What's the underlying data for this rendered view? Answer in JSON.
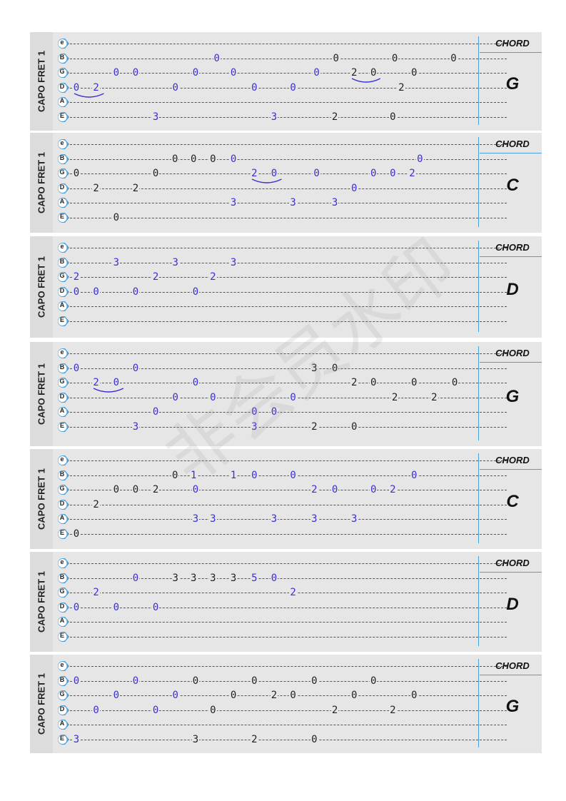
{
  "strings": [
    "e",
    "B",
    "G",
    "D",
    "A",
    "E"
  ],
  "sections": [
    {
      "capo": "CAPO FRET 1",
      "chord_header": "CHORD",
      "chord": "G",
      "notes": [
        [],
        [
          {
            "t": "0",
            "p": 0.37,
            "c": "blue"
          },
          {
            "t": "0",
            "p": 0.678,
            "c": "black"
          },
          {
            "t": "0",
            "p": 0.83,
            "c": "black"
          },
          {
            "t": "0",
            "p": 0.982,
            "c": "black"
          }
        ],
        [
          {
            "t": "0",
            "p": 0.11,
            "c": "blue"
          },
          {
            "t": "0",
            "p": 0.16,
            "c": "blue"
          },
          {
            "t": "0",
            "p": 0.315,
            "c": "blue"
          },
          {
            "t": "0",
            "p": 0.413,
            "c": "blue"
          },
          {
            "t": "0",
            "p": 0.628,
            "c": "blue"
          },
          {
            "t": "2",
            "p": 0.725,
            "c": "black"
          },
          {
            "t": "0",
            "p": 0.775,
            "c": "black"
          },
          {
            "t": "0",
            "p": 0.88,
            "c": "black"
          }
        ],
        [
          {
            "t": "0",
            "p": 0.007,
            "c": "blue"
          },
          {
            "t": "2",
            "p": 0.058,
            "c": "blue"
          },
          {
            "t": "0",
            "p": 0.263,
            "c": "blue"
          },
          {
            "t": "0",
            "p": 0.467,
            "c": "blue"
          },
          {
            "t": "0",
            "p": 0.567,
            "c": "blue"
          },
          {
            "t": "2",
            "p": 0.847,
            "c": "black"
          }
        ],
        [],
        [
          {
            "t": "3",
            "p": 0.212,
            "c": "blue"
          },
          {
            "t": "3",
            "p": 0.518,
            "c": "blue"
          },
          {
            "t": "2",
            "p": 0.675,
            "c": "black"
          },
          {
            "t": "0",
            "p": 0.825,
            "c": "black"
          }
        ]
      ],
      "slurs": [
        {
          "s": 3,
          "a": 0.007,
          "b": 0.065
        },
        {
          "s": 2,
          "a": 0.725,
          "b": 0.78
        }
      ]
    },
    {
      "capo": "CAPO FRET 1",
      "chord_header": "CHORD",
      "chord": "C",
      "notes": [
        [],
        [
          {
            "t": "0",
            "p": 0.262,
            "c": "black"
          },
          {
            "t": "0",
            "p": 0.31,
            "c": "black"
          },
          {
            "t": "0",
            "p": 0.36,
            "c": "black"
          },
          {
            "t": "0",
            "p": 0.413,
            "c": "blue"
          },
          {
            "t": "0",
            "p": 0.895,
            "c": "blue"
          }
        ],
        [
          {
            "t": "0",
            "p": 0.007,
            "c": "black"
          },
          {
            "t": "0",
            "p": 0.212,
            "c": "black"
          },
          {
            "t": "2",
            "p": 0.467,
            "c": "blue"
          },
          {
            "t": "0",
            "p": 0.518,
            "c": "blue"
          },
          {
            "t": "0",
            "p": 0.628,
            "c": "blue"
          },
          {
            "t": "0",
            "p": 0.775,
            "c": "blue"
          },
          {
            "t": "0",
            "p": 0.825,
            "c": "blue"
          },
          {
            "t": "2",
            "p": 0.875,
            "c": "blue"
          }
        ],
        [
          {
            "t": "2",
            "p": 0.058,
            "c": "black"
          },
          {
            "t": "2",
            "p": 0.16,
            "c": "black"
          },
          {
            "t": "0",
            "p": 0.725,
            "c": "blue"
          }
        ],
        [
          {
            "t": "3",
            "p": 0.413,
            "c": "blue"
          },
          {
            "t": "3",
            "p": 0.567,
            "c": "blue"
          },
          {
            "t": "3",
            "p": 0.675,
            "c": "blue"
          }
        ],
        [
          {
            "t": "0",
            "p": 0.11,
            "c": "black"
          }
        ]
      ],
      "slurs": [
        {
          "s": 2,
          "a": 0.467,
          "b": 0.525
        }
      ]
    },
    {
      "capo": "CAPO FRET 1",
      "chord_header": "CHORD",
      "chord": "D",
      "notes": [
        [],
        [
          {
            "t": "3",
            "p": 0.11,
            "c": "blue"
          },
          {
            "t": "3",
            "p": 0.263,
            "c": "blue"
          },
          {
            "t": "3",
            "p": 0.413,
            "c": "blue"
          }
        ],
        [
          {
            "t": "2",
            "p": 0.007,
            "c": "blue"
          },
          {
            "t": "2",
            "p": 0.212,
            "c": "blue"
          },
          {
            "t": "2",
            "p": 0.36,
            "c": "blue"
          }
        ],
        [
          {
            "t": "0",
            "p": 0.007,
            "c": "blue"
          },
          {
            "t": "0",
            "p": 0.058,
            "c": "blue"
          },
          {
            "t": "0",
            "p": 0.16,
            "c": "blue"
          },
          {
            "t": "0",
            "p": 0.315,
            "c": "blue"
          }
        ],
        [],
        []
      ],
      "slurs": []
    },
    {
      "capo": "CAPO FRET 1",
      "chord_header": "CHORD",
      "chord": "G",
      "notes": [
        [],
        [
          {
            "t": "0",
            "p": 0.007,
            "c": "blue"
          },
          {
            "t": "0",
            "p": 0.16,
            "c": "blue"
          },
          {
            "t": "3",
            "p": 0.622,
            "c": "black"
          },
          {
            "t": "0",
            "p": 0.675,
            "c": "black"
          }
        ],
        [
          {
            "t": "2",
            "p": 0.058,
            "c": "blue"
          },
          {
            "t": "0",
            "p": 0.11,
            "c": "blue"
          },
          {
            "t": "0",
            "p": 0.315,
            "c": "blue"
          },
          {
            "t": "2",
            "p": 0.725,
            "c": "black"
          },
          {
            "t": "0",
            "p": 0.775,
            "c": "black"
          },
          {
            "t": "0",
            "p": 0.88,
            "c": "black"
          },
          {
            "t": "0",
            "p": 0.985,
            "c": "black"
          }
        ],
        [
          {
            "t": "0",
            "p": 0.263,
            "c": "blue"
          },
          {
            "t": "0",
            "p": 0.36,
            "c": "blue"
          },
          {
            "t": "0",
            "p": 0.567,
            "c": "blue"
          },
          {
            "t": "2",
            "p": 0.83,
            "c": "black"
          },
          {
            "t": "2",
            "p": 0.932,
            "c": "black"
          }
        ],
        [
          {
            "t": "0",
            "p": 0.212,
            "c": "blue"
          },
          {
            "t": "0",
            "p": 0.467,
            "c": "blue"
          },
          {
            "t": "0",
            "p": 0.518,
            "c": "blue"
          }
        ],
        [
          {
            "t": "3",
            "p": 0.16,
            "c": "blue"
          },
          {
            "t": "3",
            "p": 0.467,
            "c": "blue"
          },
          {
            "t": "2",
            "p": 0.622,
            "c": "black"
          },
          {
            "t": "0",
            "p": 0.725,
            "c": "black"
          }
        ]
      ],
      "slurs": [
        {
          "s": 2,
          "a": 0.058,
          "b": 0.117
        }
      ]
    },
    {
      "capo": "CAPO FRET 1",
      "chord_header": "CHORD",
      "chord": "C",
      "notes": [
        [],
        [
          {
            "t": "0",
            "p": 0.262,
            "c": "black"
          },
          {
            "t": "1",
            "p": 0.31,
            "c": "blue"
          },
          {
            "t": "1",
            "p": 0.413,
            "c": "blue"
          },
          {
            "t": "0",
            "p": 0.467,
            "c": "blue"
          },
          {
            "t": "0",
            "p": 0.567,
            "c": "blue"
          },
          {
            "t": "0",
            "p": 0.88,
            "c": "blue"
          }
        ],
        [
          {
            "t": "0",
            "p": 0.11,
            "c": "black"
          },
          {
            "t": "0",
            "p": 0.16,
            "c": "black"
          },
          {
            "t": "2",
            "p": 0.212,
            "c": "black"
          },
          {
            "t": "0",
            "p": 0.315,
            "c": "blue"
          },
          {
            "t": "2",
            "p": 0.622,
            "c": "blue"
          },
          {
            "t": "0",
            "p": 0.675,
            "c": "blue"
          },
          {
            "t": "0",
            "p": 0.775,
            "c": "blue"
          },
          {
            "t": "2",
            "p": 0.825,
            "c": "blue"
          }
        ],
        [
          {
            "t": "2",
            "p": 0.058,
            "c": "black"
          }
        ],
        [
          {
            "t": "3",
            "p": 0.315,
            "c": "blue"
          },
          {
            "t": "3",
            "p": 0.36,
            "c": "blue"
          },
          {
            "t": "3",
            "p": 0.518,
            "c": "blue"
          },
          {
            "t": "3",
            "p": 0.622,
            "c": "blue"
          },
          {
            "t": "3",
            "p": 0.725,
            "c": "blue"
          }
        ],
        [
          {
            "t": "0",
            "p": 0.007,
            "c": "black"
          }
        ]
      ],
      "slurs": []
    },
    {
      "capo": "CAPO FRET 1",
      "chord_header": "CHORD",
      "chord": "D",
      "notes": [
        [],
        [
          {
            "t": "0",
            "p": 0.16,
            "c": "blue"
          },
          {
            "t": "3",
            "p": 0.263,
            "c": "black"
          },
          {
            "t": "3",
            "p": 0.31,
            "c": "black"
          },
          {
            "t": "3",
            "p": 0.36,
            "c": "black"
          },
          {
            "t": "3",
            "p": 0.413,
            "c": "black"
          },
          {
            "t": "5",
            "p": 0.467,
            "c": "blue"
          },
          {
            "t": "0",
            "p": 0.518,
            "c": "blue"
          }
        ],
        [
          {
            "t": "2",
            "p": 0.058,
            "c": "blue"
          },
          {
            "t": "2",
            "p": 0.567,
            "c": "blue"
          }
        ],
        [
          {
            "t": "0",
            "p": 0.007,
            "c": "blue"
          },
          {
            "t": "0",
            "p": 0.11,
            "c": "blue"
          },
          {
            "t": "0",
            "p": 0.212,
            "c": "blue"
          }
        ],
        [],
        []
      ],
      "slurs": []
    },
    {
      "capo": "CAPO FRET 1",
      "chord_header": "CHORD",
      "chord": "G",
      "notes": [
        [],
        [
          {
            "t": "0",
            "p": 0.007,
            "c": "blue"
          },
          {
            "t": "0",
            "p": 0.16,
            "c": "blue"
          },
          {
            "t": "0",
            "p": 0.315,
            "c": "black"
          },
          {
            "t": "0",
            "p": 0.467,
            "c": "black"
          },
          {
            "t": "0",
            "p": 0.622,
            "c": "black"
          },
          {
            "t": "0",
            "p": 0.775,
            "c": "black"
          }
        ],
        [
          {
            "t": "0",
            "p": 0.11,
            "c": "blue"
          },
          {
            "t": "0",
            "p": 0.263,
            "c": "blue"
          },
          {
            "t": "0",
            "p": 0.413,
            "c": "black"
          },
          {
            "t": "2",
            "p": 0.518,
            "c": "black"
          },
          {
            "t": "0",
            "p": 0.567,
            "c": "black"
          },
          {
            "t": "0",
            "p": 0.725,
            "c": "black"
          },
          {
            "t": "0",
            "p": 0.88,
            "c": "black"
          }
        ],
        [
          {
            "t": "0",
            "p": 0.058,
            "c": "blue"
          },
          {
            "t": "0",
            "p": 0.212,
            "c": "blue"
          },
          {
            "t": "0",
            "p": 0.36,
            "c": "black"
          },
          {
            "t": "2",
            "p": 0.675,
            "c": "black"
          },
          {
            "t": "2",
            "p": 0.825,
            "c": "black"
          }
        ],
        [],
        [
          {
            "t": "3",
            "p": 0.007,
            "c": "blue"
          },
          {
            "t": "3",
            "p": 0.315,
            "c": "black"
          },
          {
            "t": "2",
            "p": 0.467,
            "c": "black"
          },
          {
            "t": "0",
            "p": 0.622,
            "c": "black"
          }
        ]
      ],
      "slurs": []
    }
  ],
  "watermark": "非会员水印",
  "colors": {
    "blue_note": "#3b2fcf",
    "black_note": "#222222",
    "accent": "#4a9fd8",
    "panel": "#e6e6e6",
    "icon_fill": "#4a9fd8"
  }
}
